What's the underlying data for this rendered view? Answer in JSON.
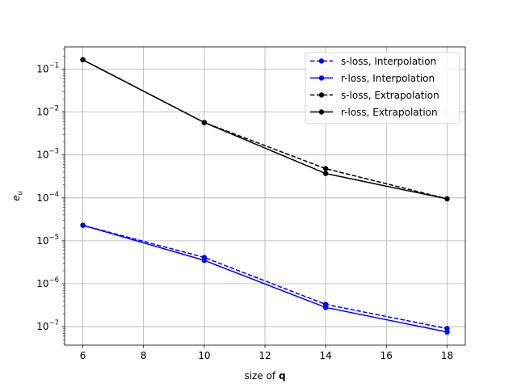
{
  "chart_data": {
    "type": "line",
    "title": "",
    "xlabel_prefix": "size of ",
    "xlabel_bold": "q",
    "ylabel_main": "e",
    "ylabel_sub": "u",
    "x": [
      6,
      10,
      14,
      18
    ],
    "xlim": [
      5.4,
      18.6
    ],
    "xticks": [
      6,
      8,
      10,
      12,
      14,
      16,
      18
    ],
    "xtick_labels": [
      "6",
      "8",
      "10",
      "12",
      "14",
      "16",
      "18"
    ],
    "yscale": "log",
    "ylim": [
      3.7e-08,
      0.33
    ],
    "yticks": [
      1e-07,
      1e-06,
      1e-05,
      0.0001,
      0.001,
      0.01,
      0.1
    ],
    "ytick_labels": [
      {
        "base": "10",
        "exp": "−7"
      },
      {
        "base": "10",
        "exp": "−6"
      },
      {
        "base": "10",
        "exp": "−5"
      },
      {
        "base": "10",
        "exp": "−4"
      },
      {
        "base": "10",
        "exp": "−3"
      },
      {
        "base": "10",
        "exp": "−2"
      },
      {
        "base": "10",
        "exp": "−1"
      }
    ],
    "grid": true,
    "legend_position": "top-right",
    "series": [
      {
        "name": "s-loss, Interpolation",
        "color": "#0000ff",
        "dash": "dashed",
        "marker": "circle",
        "values": [
          2.3e-05,
          4.1e-06,
          3.3e-07,
          9e-08
        ]
      },
      {
        "name": "r-loss, Interpolation",
        "color": "#0000ff",
        "dash": "solid",
        "marker": "circle",
        "values": [
          2.3e-05,
          3.5e-06,
          2.8e-07,
          7.5e-08
        ]
      },
      {
        "name": "s-loss, Extrapolation",
        "color": "#000000",
        "dash": "dashed",
        "marker": "circle",
        "values": [
          0.165,
          0.0057,
          0.00048,
          9.5e-05
        ]
      },
      {
        "name": "r-loss, Extrapolation",
        "color": "#000000",
        "dash": "solid",
        "marker": "circle",
        "values": [
          0.165,
          0.0057,
          0.00037,
          9.5e-05
        ]
      }
    ]
  }
}
